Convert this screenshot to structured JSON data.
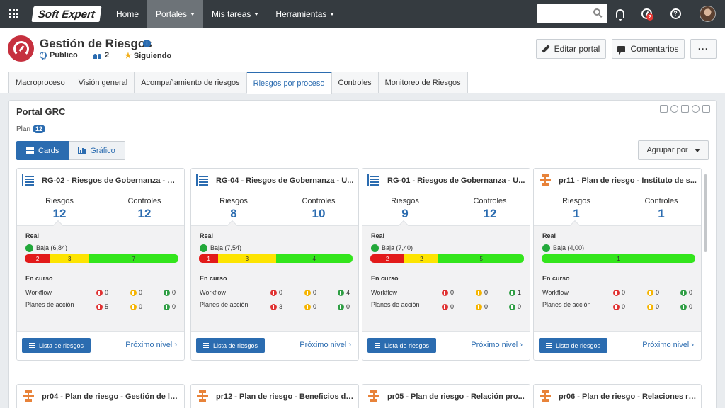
{
  "topbar": {
    "logo": "Soft Expert",
    "nav": [
      "Home",
      "Portales",
      "Mis tareas",
      "Herramientas"
    ],
    "notification_badge": "2"
  },
  "header": {
    "title": "Gestión de Riesgos",
    "visibility": "Público",
    "members": "2",
    "follow": "Siguiendo",
    "edit_btn": "Editar portal",
    "comments_btn": "Comentarios",
    "more_btn": "···"
  },
  "tabs": [
    "Macroproceso",
    "Visión general",
    "Acompañamiento de riesgos",
    "Riesgos por proceso",
    "Controles",
    "Monitoreo de Riesgos"
  ],
  "panel": {
    "title": "Portal GRC",
    "plan_label": "Plan",
    "plan_count": "12",
    "view_cards": "Cards",
    "view_chart": "Gráfico",
    "group_by": "Agrupar por"
  },
  "labels": {
    "riesgos": "Riesgos",
    "controles": "Controles",
    "real": "Real",
    "en_curso": "En curso",
    "workflow": "Workflow",
    "planes": "Planes de acción",
    "list_btn": "Lista de riesgos",
    "next": "Próximo nivel"
  },
  "cards": [
    {
      "icon": "document-list-icon",
      "title": "RG-02 - Riesgos de Gobernanza - Un...",
      "riesgos": "12",
      "controles": "12",
      "level": "Baja (6,84)",
      "bar": [
        {
          "c": "r",
          "v": "2"
        },
        {
          "c": "y",
          "v": "3"
        },
        {
          "c": "g",
          "v": "7"
        }
      ],
      "workflow": [
        "0",
        "0",
        "0"
      ],
      "planes": [
        "5",
        "0",
        "0"
      ]
    },
    {
      "icon": "document-list-icon",
      "title": "RG-04 - Riesgos de Gobernanza - U...",
      "riesgos": "8",
      "controles": "10",
      "level": "Baja (7,54)",
      "bar": [
        {
          "c": "r",
          "v": "1"
        },
        {
          "c": "y",
          "v": "3"
        },
        {
          "c": "g",
          "v": "4"
        }
      ],
      "workflow": [
        "0",
        "0",
        "4"
      ],
      "planes": [
        "3",
        "0",
        "0"
      ]
    },
    {
      "icon": "document-list-icon",
      "title": "RG-01 - Riesgos de Gobernanza - U...",
      "riesgos": "9",
      "controles": "12",
      "level": "Baja (7,40)",
      "bar": [
        {
          "c": "r",
          "v": "2"
        },
        {
          "c": "y",
          "v": "2"
        },
        {
          "c": "g",
          "v": "5"
        }
      ],
      "workflow": [
        "0",
        "0",
        "1"
      ],
      "planes": [
        "0",
        "0",
        "0"
      ]
    },
    {
      "icon": "process-flow-icon",
      "title": "pr11 - Plan de riesgo - Instituto de s...",
      "riesgos": "1",
      "controles": "1",
      "level": "Baja (4,00)",
      "bar": [
        {
          "c": "g",
          "v": "1"
        }
      ],
      "workflow": [
        "0",
        "0",
        "0"
      ],
      "planes": [
        "0",
        "0",
        "0"
      ]
    }
  ],
  "bottom_cards": [
    "pr04 - Plan de riesgo - Gestión de la...",
    "pr12 - Plan de riesgo - Beneficios de...",
    "pr05 - Plan de riesgo - Relación pro...",
    "pr06 - Plan de riesgo - Relaciones re..."
  ]
}
